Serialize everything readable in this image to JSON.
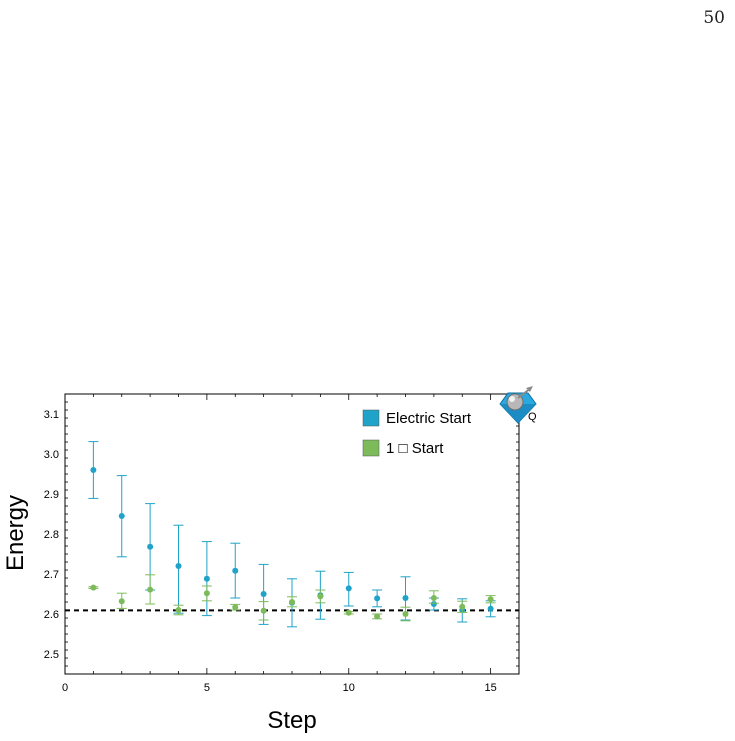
{
  "page": {
    "number": "50"
  },
  "logo": {
    "icon": "quantum-diamond-logo-icon",
    "letter": "Q"
  },
  "colors": {
    "electric": "#1fa3c8",
    "one_start": "#7dbb5a",
    "reference_line": "#000000",
    "frame": "#000000"
  },
  "chart_data": {
    "type": "scatter",
    "xlabel": "Step",
    "ylabel": "Energy",
    "xlim": [
      0,
      16
    ],
    "ylim": [
      2.45,
      3.15
    ],
    "xticks": [
      0,
      5,
      10,
      15
    ],
    "yticks": [
      2.5,
      2.6,
      2.7,
      2.8,
      2.9,
      3.0,
      3.1
    ],
    "ytick_labels": [
      "2.5",
      "2.6",
      "2.7",
      "2.8",
      "2.9",
      "3.0",
      "3.1"
    ],
    "xtick_labels": [
      "0",
      "5",
      "10",
      "15"
    ],
    "reference_line": {
      "y": 2.609,
      "style": "dashed"
    },
    "legend": {
      "placement": "top-right"
    },
    "grid": false,
    "series": [
      {
        "name": "Electric Start",
        "x": [
          1,
          2,
          3,
          4,
          5,
          6,
          7,
          8,
          9,
          10,
          11,
          12,
          13,
          14,
          15
        ],
        "y": [
          2.96,
          2.845,
          2.768,
          2.72,
          2.688,
          2.708,
          2.65,
          2.628,
          2.647,
          2.664,
          2.639,
          2.64,
          2.625,
          2.61,
          2.613
        ],
        "err_low": [
          2.889,
          2.743,
          2.66,
          2.602,
          2.596,
          2.64,
          2.574,
          2.568,
          2.587,
          2.62,
          2.618,
          2.585,
          2.61,
          2.58,
          2.593
        ],
        "err_high": [
          3.031,
          2.946,
          2.876,
          2.822,
          2.781,
          2.777,
          2.724,
          2.688,
          2.707,
          2.704,
          2.66,
          2.693,
          2.64,
          2.638,
          2.633
        ]
      },
      {
        "name": "1 □ Start",
        "x": [
          1,
          2,
          3,
          4,
          5,
          6,
          7,
          8,
          9,
          10,
          11,
          12,
          13,
          14,
          15
        ],
        "y": [
          2.666,
          2.632,
          2.661,
          2.61,
          2.652,
          2.617,
          2.608,
          2.63,
          2.644,
          2.603,
          2.594,
          2.6,
          2.64,
          2.618,
          2.637
        ],
        "err_low": [
          2.664,
          2.614,
          2.625,
          2.598,
          2.633,
          2.61,
          2.585,
          2.618,
          2.628,
          2.6,
          2.588,
          2.583,
          2.627,
          2.604,
          2.628
        ],
        "err_high": [
          2.668,
          2.652,
          2.698,
          2.622,
          2.67,
          2.624,
          2.631,
          2.643,
          2.66,
          2.606,
          2.6,
          2.617,
          2.658,
          2.632,
          2.646
        ]
      }
    ]
  }
}
